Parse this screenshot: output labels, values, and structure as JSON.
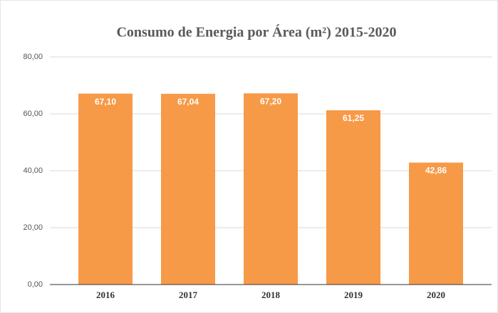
{
  "chart_data": {
    "type": "bar",
    "title": "Consumo de Energia por Área (m²) 2015-2020",
    "categories": [
      "2016",
      "2017",
      "2018",
      "2019",
      "2020"
    ],
    "values": [
      67.1,
      67.04,
      67.2,
      61.25,
      42.86
    ],
    "value_labels": [
      "67,10",
      "67,04",
      "67,20",
      "61,25",
      "42,86"
    ],
    "color": "#f79a48",
    "ylim": [
      0,
      80
    ],
    "yticks": [
      {
        "value": 0,
        "label": "0,00"
      },
      {
        "value": 20,
        "label": "20,00"
      },
      {
        "value": 40,
        "label": "40,00"
      },
      {
        "value": 60,
        "label": "60,00"
      },
      {
        "value": 80,
        "label": "80,00"
      }
    ],
    "grid": true
  }
}
